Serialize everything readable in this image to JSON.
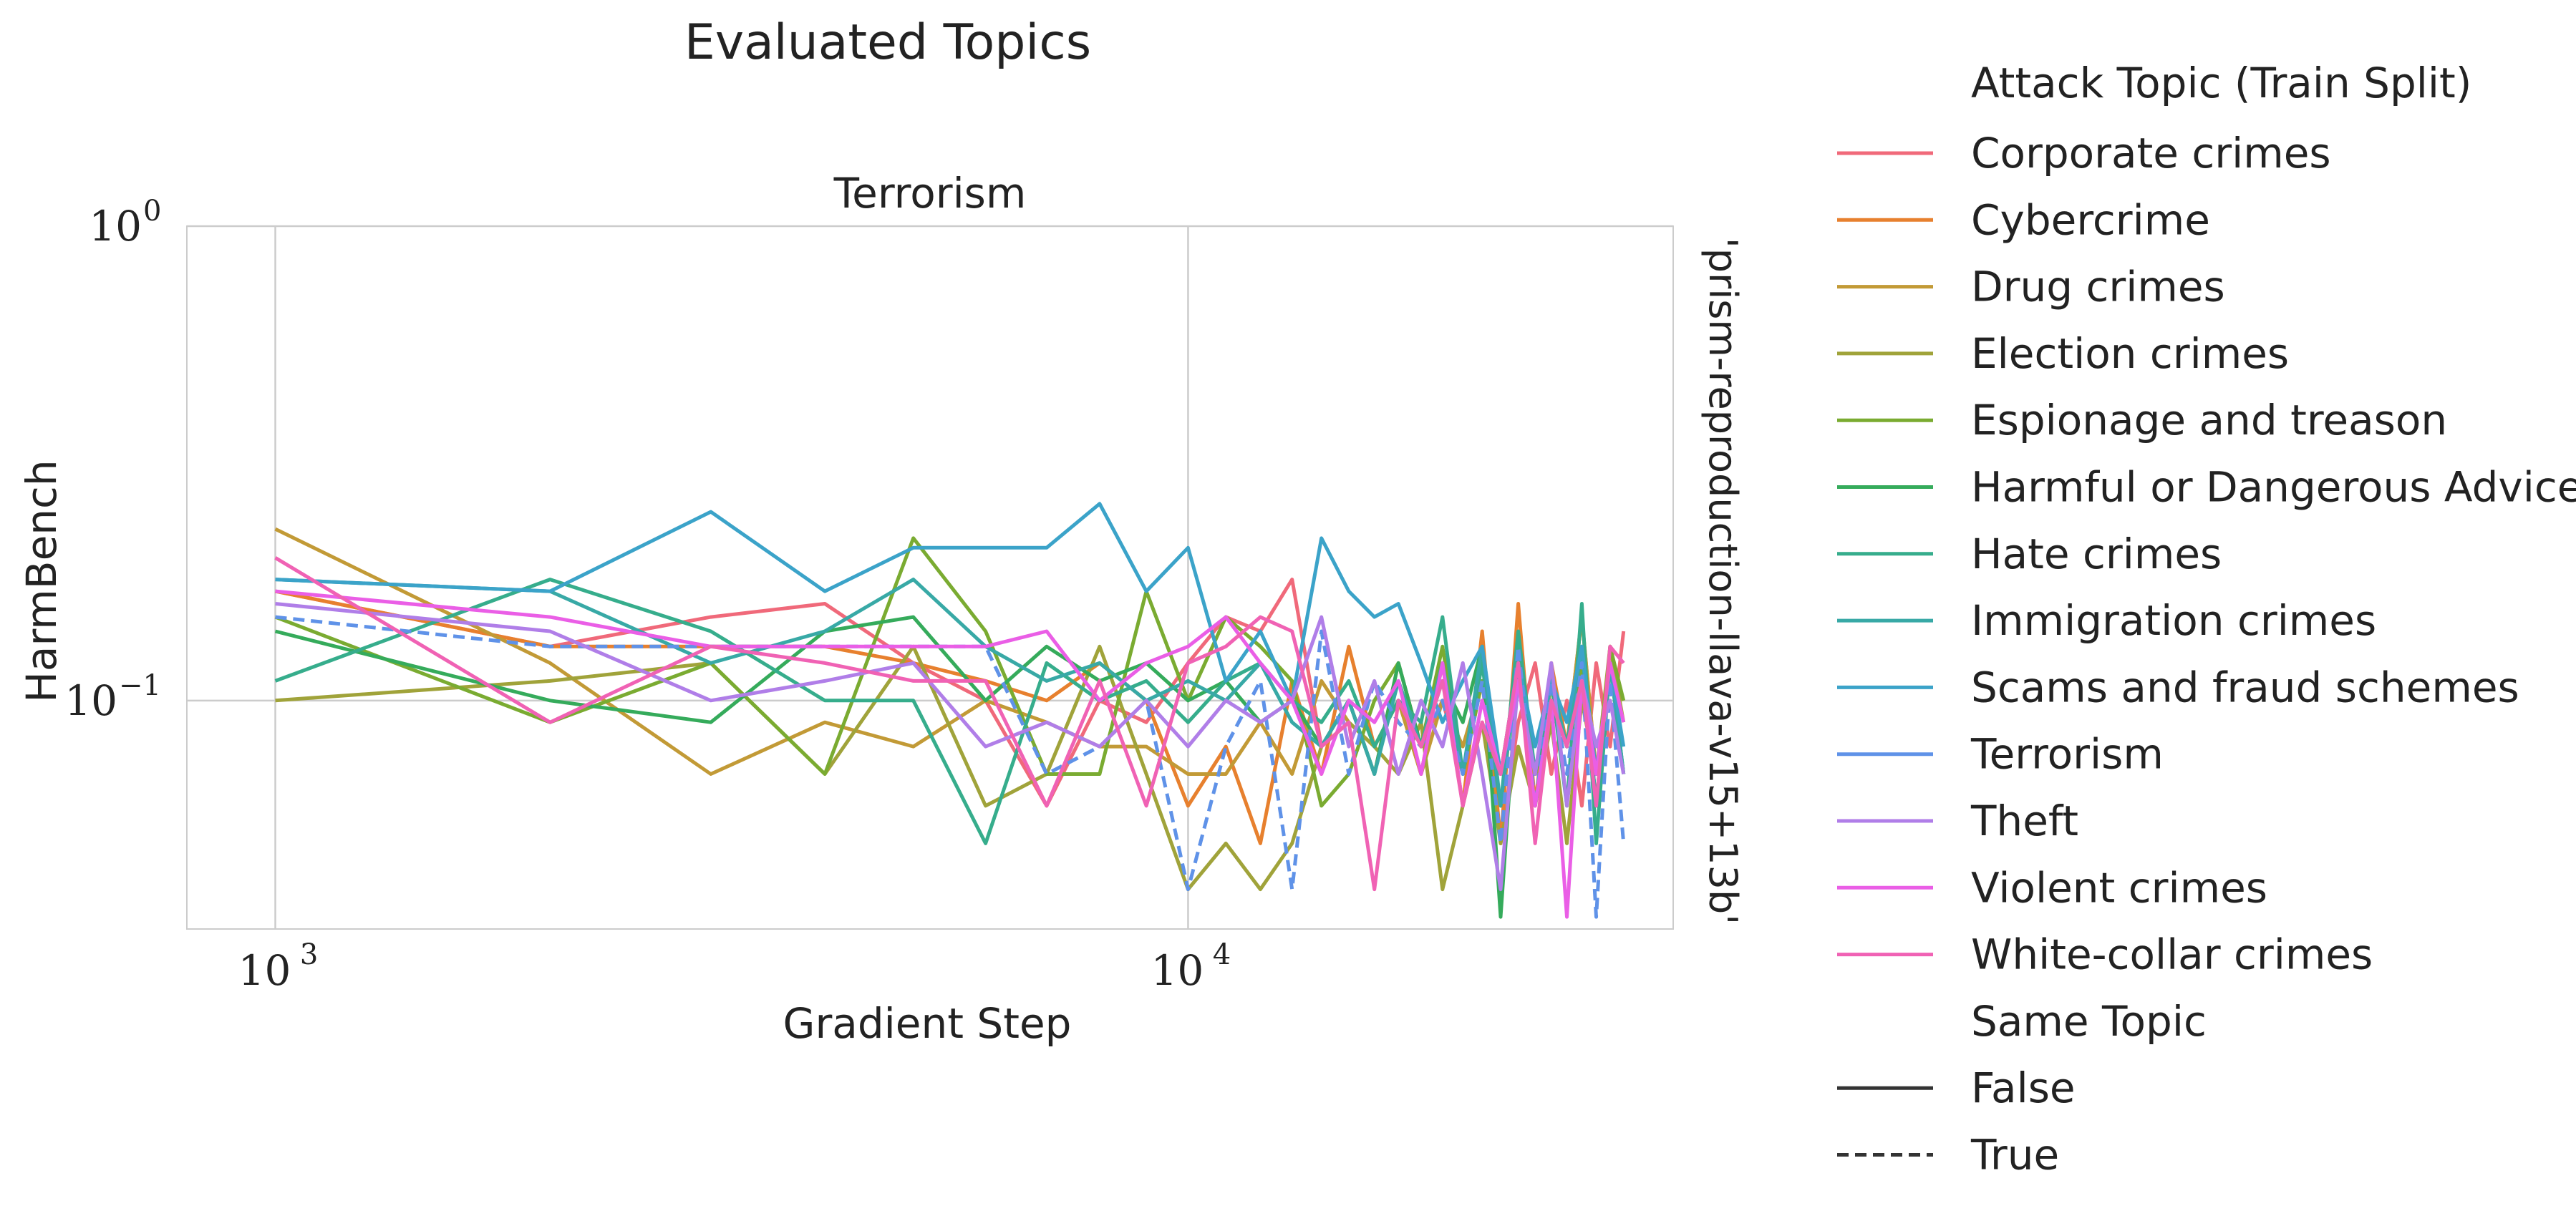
{
  "figure_title": "Evaluated Topics",
  "row_label": "'prism-reproduction-llava-v15+13b'",
  "chart_data": {
    "type": "line",
    "title": "Terrorism",
    "xlabel": "Gradient Step",
    "ylabel": "HarmBench",
    "xscale": "log",
    "yscale": "log",
    "xlim": [
      800,
      34000
    ],
    "ylim": [
      0.033,
      1.0
    ],
    "xticks": [
      {
        "value": 1000,
        "base": "10",
        "exp": "3"
      },
      {
        "value": 10000,
        "base": "10",
        "exp": "4"
      }
    ],
    "yticks": [
      {
        "value": 1.0,
        "base": "10",
        "exp": "0"
      },
      {
        "value": 0.1,
        "base": "10",
        "exp": "−1"
      }
    ],
    "grid": true,
    "legend_position": "right",
    "legend": {
      "hue_title": "Attack Topic (Train Split)",
      "style_title": "Same Topic",
      "style_entries": [
        {
          "label": "False",
          "dash": "solid"
        },
        {
          "label": "True",
          "dash": "dashed"
        }
      ]
    },
    "series": [
      {
        "name": "Corporate crimes",
        "color": "#f0697a",
        "same_topic": false,
        "x": [
          1000,
          2000,
          3000,
          4000,
          5000,
          6000,
          7000,
          8000,
          9000,
          10000,
          11000,
          12000,
          13000,
          14000,
          15000,
          16000,
          17000,
          18000,
          19000,
          20000,
          21000,
          22000,
          23000,
          24000,
          25000,
          26000,
          27000,
          28000,
          29000,
          30000
        ],
        "y": [
          0.17,
          0.13,
          0.15,
          0.16,
          0.12,
          0.1,
          0.06,
          0.1,
          0.09,
          0.12,
          0.15,
          0.14,
          0.18,
          0.08,
          0.1,
          0.07,
          0.12,
          0.08,
          0.1,
          0.07,
          0.11,
          0.05,
          0.09,
          0.12,
          0.07,
          0.1,
          0.06,
          0.12,
          0.08,
          0.14
        ]
      },
      {
        "name": "Cybercrime",
        "color": "#e7802e",
        "same_topic": false,
        "x": [
          1000,
          2000,
          3000,
          4000,
          5000,
          6000,
          7000,
          8000,
          9000,
          10000,
          11000,
          12000,
          13000,
          14000,
          15000,
          16000,
          17000,
          18000,
          19000,
          20000,
          21000,
          22000,
          23000,
          24000,
          25000,
          26000,
          27000,
          28000,
          29000,
          30000
        ],
        "y": [
          0.17,
          0.13,
          0.13,
          0.13,
          0.12,
          0.11,
          0.1,
          0.12,
          0.1,
          0.06,
          0.08,
          0.05,
          0.11,
          0.07,
          0.13,
          0.08,
          0.1,
          0.07,
          0.12,
          0.06,
          0.14,
          0.05,
          0.16,
          0.06,
          0.12,
          0.08,
          0.15,
          0.07,
          0.12,
          0.1
        ]
      },
      {
        "name": "Drug crimes",
        "color": "#c29a36",
        "same_topic": false,
        "x": [
          1000,
          2000,
          3000,
          4000,
          5000,
          6000,
          7000,
          8000,
          9000,
          10000,
          11000,
          12000,
          13000,
          14000,
          15000,
          16000,
          17000,
          18000,
          19000,
          20000,
          21000,
          22000,
          23000,
          24000,
          25000,
          26000,
          27000,
          28000,
          29000,
          30000
        ],
        "y": [
          0.23,
          0.12,
          0.07,
          0.09,
          0.08,
          0.1,
          0.09,
          0.08,
          0.08,
          0.07,
          0.07,
          0.09,
          0.07,
          0.11,
          0.09,
          0.08,
          0.1,
          0.07,
          0.1,
          0.08,
          0.11,
          0.07,
          0.12,
          0.06,
          0.11,
          0.08,
          0.15,
          0.07,
          0.12,
          0.1
        ]
      },
      {
        "name": "Election crimes",
        "color": "#a0a33a",
        "same_topic": false,
        "x": [
          1000,
          2000,
          3000,
          4000,
          5000,
          6000,
          7000,
          8000,
          9000,
          10000,
          11000,
          12000,
          13000,
          14000,
          15000,
          16000,
          17000,
          18000,
          19000,
          20000,
          21000,
          22000,
          23000,
          24000,
          25000,
          26000,
          27000,
          28000,
          29000,
          30000
        ],
        "y": [
          0.1,
          0.11,
          0.12,
          0.07,
          0.13,
          0.06,
          0.07,
          0.13,
          0.07,
          0.04,
          0.05,
          0.04,
          0.05,
          0.08,
          0.09,
          0.08,
          0.07,
          0.09,
          0.04,
          0.06,
          0.09,
          0.05,
          0.08,
          0.06,
          0.09,
          0.05,
          0.1,
          0.07,
          0.13,
          0.09
        ]
      },
      {
        "name": "Espionage and treason",
        "color": "#7aab31",
        "same_topic": false,
        "x": [
          1000,
          2000,
          3000,
          4000,
          5000,
          6000,
          7000,
          8000,
          9000,
          10000,
          11000,
          12000,
          13000,
          14000,
          15000,
          16000,
          17000,
          18000,
          19000,
          20000,
          21000,
          22000,
          23000,
          24000,
          25000,
          26000,
          27000,
          28000,
          29000,
          30000
        ],
        "y": [
          0.15,
          0.09,
          0.12,
          0.07,
          0.22,
          0.14,
          0.07,
          0.07,
          0.17,
          0.1,
          0.15,
          0.13,
          0.11,
          0.06,
          0.07,
          0.1,
          0.12,
          0.08,
          0.13,
          0.07,
          0.11,
          0.06,
          0.13,
          0.07,
          0.1,
          0.08,
          0.12,
          0.06,
          0.13,
          0.1
        ]
      },
      {
        "name": "Harmful or Dangerous Advice",
        "color": "#35ab5b",
        "same_topic": false,
        "x": [
          1000,
          2000,
          3000,
          4000,
          5000,
          6000,
          7000,
          8000,
          9000,
          10000,
          11000,
          12000,
          13000,
          14000,
          15000,
          16000,
          17000,
          18000,
          19000,
          20000,
          21000,
          22000,
          23000,
          24000,
          25000,
          26000,
          27000,
          28000,
          29000,
          30000
        ],
        "y": [
          0.14,
          0.1,
          0.09,
          0.14,
          0.15,
          0.1,
          0.13,
          0.11,
          0.12,
          0.1,
          0.11,
          0.09,
          0.1,
          0.08,
          0.1,
          0.07,
          0.12,
          0.08,
          0.11,
          0.09,
          0.13,
          0.035,
          0.12,
          0.07,
          0.1,
          0.08,
          0.13,
          0.06,
          0.12,
          0.07
        ]
      },
      {
        "name": "Hate crimes",
        "color": "#36ad8c",
        "same_topic": false,
        "x": [
          1000,
          2000,
          3000,
          4000,
          5000,
          6000,
          7000,
          8000,
          9000,
          10000,
          11000,
          12000,
          13000,
          14000,
          15000,
          16000,
          17000,
          18000,
          19000,
          20000,
          21000,
          22000,
          23000,
          24000,
          25000,
          26000,
          27000,
          28000,
          29000,
          30000
        ],
        "y": [
          0.11,
          0.18,
          0.14,
          0.1,
          0.1,
          0.05,
          0.12,
          0.1,
          0.11,
          0.09,
          0.11,
          0.12,
          0.1,
          0.09,
          0.11,
          0.08,
          0.1,
          0.09,
          0.15,
          0.07,
          0.12,
          0.06,
          0.14,
          0.07,
          0.11,
          0.06,
          0.16,
          0.05,
          0.12,
          0.07
        ]
      },
      {
        "name": "Immigration crimes",
        "color": "#38a9a6",
        "same_topic": false,
        "x": [
          1000,
          2000,
          3000,
          4000,
          5000,
          6000,
          7000,
          8000,
          9000,
          10000,
          11000,
          12000,
          13000,
          14000,
          15000,
          16000,
          17000,
          18000,
          19000,
          20000,
          21000,
          22000,
          23000,
          24000,
          25000,
          26000,
          27000,
          28000,
          29000,
          30000
        ],
        "y": [
          0.18,
          0.17,
          0.12,
          0.14,
          0.18,
          0.13,
          0.11,
          0.12,
          0.1,
          0.11,
          0.1,
          0.12,
          0.09,
          0.08,
          0.1,
          0.07,
          0.11,
          0.08,
          0.12,
          0.07,
          0.13,
          0.06,
          0.12,
          0.07,
          0.11,
          0.08,
          0.13,
          0.06,
          0.12,
          0.07
        ]
      },
      {
        "name": "Scams and fraud schemes",
        "color": "#3ba3c9",
        "same_topic": false,
        "x": [
          1000,
          2000,
          3000,
          4000,
          5000,
          6000,
          7000,
          8000,
          9000,
          10000,
          11000,
          12000,
          13000,
          14000,
          15000,
          16000,
          17000,
          18000,
          19000,
          20000,
          21000,
          22000,
          23000,
          24000,
          25000,
          26000,
          27000,
          28000,
          29000,
          30000
        ],
        "y": [
          0.18,
          0.17,
          0.25,
          0.17,
          0.21,
          0.21,
          0.21,
          0.26,
          0.17,
          0.21,
          0.11,
          0.14,
          0.1,
          0.22,
          0.17,
          0.15,
          0.16,
          0.12,
          0.09,
          0.11,
          0.13,
          0.07,
          0.12,
          0.08,
          0.11,
          0.09,
          0.13,
          0.07,
          0.12,
          0.08
        ]
      },
      {
        "name": "Terrorism",
        "color": "#5f92e8",
        "same_topic": true,
        "x": [
          1000,
          2000,
          3000,
          4000,
          5000,
          6000,
          7000,
          8000,
          9000,
          10000,
          11000,
          12000,
          13000,
          14000,
          15000,
          16000,
          17000,
          18000,
          19000,
          20000,
          21000,
          22000,
          23000,
          24000,
          25000,
          26000,
          27000,
          28000,
          29000,
          30000
        ],
        "y": [
          0.15,
          0.13,
          0.13,
          0.13,
          0.13,
          0.13,
          0.07,
          0.08,
          0.1,
          0.04,
          0.08,
          0.11,
          0.04,
          0.14,
          0.07,
          0.11,
          0.09,
          0.08,
          0.1,
          0.07,
          0.11,
          0.05,
          0.13,
          0.06,
          0.11,
          0.07,
          0.12,
          0.035,
          0.11,
          0.05
        ]
      },
      {
        "name": "Theft",
        "color": "#b07ee8",
        "same_topic": false,
        "x": [
          1000,
          2000,
          3000,
          4000,
          5000,
          6000,
          7000,
          8000,
          9000,
          10000,
          11000,
          12000,
          13000,
          14000,
          15000,
          16000,
          17000,
          18000,
          19000,
          20000,
          21000,
          22000,
          23000,
          24000,
          25000,
          26000,
          27000,
          28000,
          29000,
          30000
        ],
        "y": [
          0.16,
          0.14,
          0.1,
          0.11,
          0.12,
          0.08,
          0.09,
          0.08,
          0.1,
          0.08,
          0.1,
          0.09,
          0.1,
          0.15,
          0.08,
          0.11,
          0.07,
          0.1,
          0.08,
          0.12,
          0.07,
          0.04,
          0.11,
          0.07,
          0.12,
          0.06,
          0.11,
          0.08,
          0.1,
          0.07
        ]
      },
      {
        "name": "Violent crimes",
        "color": "#ea5ee6",
        "same_topic": false,
        "x": [
          1000,
          2000,
          3000,
          4000,
          5000,
          6000,
          7000,
          8000,
          9000,
          10000,
          11000,
          12000,
          13000,
          14000,
          15000,
          16000,
          17000,
          18000,
          19000,
          20000,
          21000,
          22000,
          23000,
          24000,
          25000,
          26000,
          27000,
          28000,
          29000,
          30000
        ],
        "y": [
          0.17,
          0.15,
          0.13,
          0.13,
          0.13,
          0.13,
          0.14,
          0.1,
          0.12,
          0.13,
          0.15,
          0.12,
          0.1,
          0.07,
          0.1,
          0.09,
          0.11,
          0.07,
          0.12,
          0.06,
          0.1,
          0.07,
          0.11,
          0.06,
          0.1,
          0.035,
          0.11,
          0.07,
          0.12,
          0.09
        ]
      },
      {
        "name": "White-collar crimes",
        "color": "#f062b4",
        "same_topic": false,
        "x": [
          1000,
          2000,
          3000,
          4000,
          5000,
          6000,
          7000,
          8000,
          9000,
          10000,
          11000,
          12000,
          13000,
          14000,
          15000,
          16000,
          17000,
          18000,
          19000,
          20000,
          21000,
          22000,
          23000,
          24000,
          25000,
          26000,
          27000,
          28000,
          29000,
          30000
        ],
        "y": [
          0.2,
          0.09,
          0.13,
          0.12,
          0.11,
          0.11,
          0.06,
          0.11,
          0.06,
          0.12,
          0.13,
          0.15,
          0.14,
          0.08,
          0.09,
          0.04,
          0.1,
          0.08,
          0.11,
          0.06,
          0.09,
          0.07,
          0.12,
          0.05,
          0.1,
          0.08,
          0.11,
          0.06,
          0.13,
          0.12
        ]
      }
    ]
  }
}
